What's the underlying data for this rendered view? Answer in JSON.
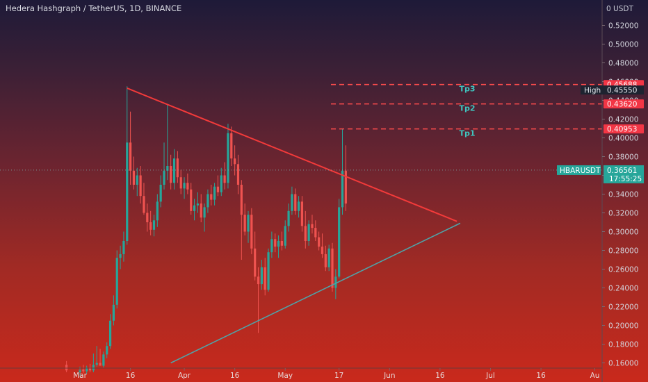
{
  "header": {
    "title": "Hedera Hashgraph / TetherUS, 1D, BINANCE"
  },
  "axis": {
    "currency": "USDT",
    "top_label": "0"
  },
  "colors": {
    "up": "#26a69a",
    "down": "#ef5350",
    "resistance_line": "#f23a3a",
    "support_line": "#4fa3a8",
    "target_line": "#ff4d4d",
    "label_bg_red": "#f23645",
    "label_bg_dark": "#1e2330",
    "label_bg_teal": "#26a69a"
  },
  "price_labels": {
    "tp3_price": "0.45688",
    "high_label": "High",
    "high_price": "0.45550",
    "tp2_price": "0.43620",
    "tp1_price": "0.40953",
    "symbol": "HBARUSDT",
    "last_price": "0.36561",
    "countdown": "17:55:25"
  },
  "chart_data": {
    "type": "candlestick",
    "title": "Hedera Hashgraph / TetherUS, 1D, BINANCE",
    "ylim": [
      0.16,
      0.53
    ],
    "y_ticks": [
      "0.52000",
      "0.50000",
      "0.48000",
      "0.46000",
      "0.44000",
      "0.42000",
      "0.40000",
      "0.38000",
      "0.36000",
      "0.34000",
      "0.32000",
      "0.30000",
      "0.28000",
      "0.26000",
      "0.24000",
      "0.22000",
      "0.20000",
      "0.18000",
      "0.16000"
    ],
    "x_ticks": [
      "Mar",
      "16",
      "Apr",
      "16",
      "May",
      "17",
      "Jun",
      "16",
      "Jul",
      "16",
      "Au"
    ],
    "grid": false,
    "targets": [
      {
        "label": "Tp3",
        "price": 0.45688
      },
      {
        "label": "Tp2",
        "price": 0.4362
      },
      {
        "label": "Tp1",
        "price": 0.40953
      }
    ],
    "high": 0.4555,
    "last": 0.36561,
    "trendlines": [
      {
        "name": "resistance",
        "from": {
          "date": "2021-03-15",
          "price": 0.453
        },
        "to": {
          "date": "2021-06-21",
          "price": 0.311
        }
      },
      {
        "name": "support",
        "from": {
          "date": "2021-03-28",
          "price": 0.16
        },
        "to": {
          "date": "2021-06-22",
          "price": 0.309
        }
      }
    ],
    "candles": [
      {
        "date": "2021-02-25",
        "o": 0.158,
        "h": 0.162,
        "l": 0.15,
        "c": 0.152
      },
      {
        "date": "2021-03-01",
        "o": 0.15,
        "h": 0.156,
        "l": 0.146,
        "c": 0.153
      },
      {
        "date": "2021-03-02",
        "o": 0.153,
        "h": 0.158,
        "l": 0.149,
        "c": 0.151
      },
      {
        "date": "2021-03-03",
        "o": 0.151,
        "h": 0.157,
        "l": 0.148,
        "c": 0.155
      },
      {
        "date": "2021-03-04",
        "o": 0.155,
        "h": 0.159,
        "l": 0.15,
        "c": 0.152
      },
      {
        "date": "2021-03-05",
        "o": 0.152,
        "h": 0.17,
        "l": 0.15,
        "c": 0.158
      },
      {
        "date": "2021-03-06",
        "o": 0.158,
        "h": 0.178,
        "l": 0.156,
        "c": 0.16
      },
      {
        "date": "2021-03-07",
        "o": 0.16,
        "h": 0.175,
        "l": 0.157,
        "c": 0.157
      },
      {
        "date": "2021-03-08",
        "o": 0.157,
        "h": 0.172,
        "l": 0.155,
        "c": 0.169
      },
      {
        "date": "2021-03-09",
        "o": 0.169,
        "h": 0.182,
        "l": 0.165,
        "c": 0.178
      },
      {
        "date": "2021-03-10",
        "o": 0.178,
        "h": 0.212,
        "l": 0.175,
        "c": 0.205
      },
      {
        "date": "2021-03-11",
        "o": 0.205,
        "h": 0.232,
        "l": 0.2,
        "c": 0.222
      },
      {
        "date": "2021-03-12",
        "o": 0.222,
        "h": 0.28,
        "l": 0.218,
        "c": 0.272
      },
      {
        "date": "2021-03-13",
        "o": 0.272,
        "h": 0.285,
        "l": 0.26,
        "c": 0.276
      },
      {
        "date": "2021-03-14",
        "o": 0.276,
        "h": 0.3,
        "l": 0.268,
        "c": 0.29
      },
      {
        "date": "2021-03-15",
        "o": 0.29,
        "h": 0.455,
        "l": 0.286,
        "c": 0.395
      },
      {
        "date": "2021-03-16",
        "o": 0.395,
        "h": 0.428,
        "l": 0.35,
        "c": 0.365
      },
      {
        "date": "2021-03-17",
        "o": 0.365,
        "h": 0.38,
        "l": 0.345,
        "c": 0.35
      },
      {
        "date": "2021-03-18",
        "o": 0.35,
        "h": 0.368,
        "l": 0.338,
        "c": 0.36
      },
      {
        "date": "2021-03-19",
        "o": 0.36,
        "h": 0.37,
        "l": 0.33,
        "c": 0.338
      },
      {
        "date": "2021-03-20",
        "o": 0.338,
        "h": 0.352,
        "l": 0.318,
        "c": 0.32
      },
      {
        "date": "2021-03-21",
        "o": 0.32,
        "h": 0.33,
        "l": 0.3,
        "c": 0.31
      },
      {
        "date": "2021-03-22",
        "o": 0.31,
        "h": 0.322,
        "l": 0.296,
        "c": 0.302
      },
      {
        "date": "2021-03-23",
        "o": 0.302,
        "h": 0.318,
        "l": 0.295,
        "c": 0.312
      },
      {
        "date": "2021-03-24",
        "o": 0.312,
        "h": 0.34,
        "l": 0.305,
        "c": 0.332
      },
      {
        "date": "2021-03-25",
        "o": 0.332,
        "h": 0.36,
        "l": 0.326,
        "c": 0.35
      },
      {
        "date": "2021-03-26",
        "o": 0.35,
        "h": 0.395,
        "l": 0.345,
        "c": 0.365
      },
      {
        "date": "2021-03-27",
        "o": 0.365,
        "h": 0.436,
        "l": 0.355,
        "c": 0.37
      },
      {
        "date": "2021-03-28",
        "o": 0.37,
        "h": 0.382,
        "l": 0.345,
        "c": 0.352
      },
      {
        "date": "2021-03-29",
        "o": 0.352,
        "h": 0.388,
        "l": 0.345,
        "c": 0.378
      },
      {
        "date": "2021-03-30",
        "o": 0.378,
        "h": 0.386,
        "l": 0.352,
        "c": 0.358
      },
      {
        "date": "2021-03-31",
        "o": 0.358,
        "h": 0.366,
        "l": 0.34,
        "c": 0.346
      },
      {
        "date": "2021-04-01",
        "o": 0.346,
        "h": 0.358,
        "l": 0.335,
        "c": 0.352
      },
      {
        "date": "2021-04-02",
        "o": 0.352,
        "h": 0.362,
        "l": 0.34,
        "c": 0.345
      },
      {
        "date": "2021-04-03",
        "o": 0.345,
        "h": 0.352,
        "l": 0.318,
        "c": 0.322
      },
      {
        "date": "2021-04-04",
        "o": 0.322,
        "h": 0.335,
        "l": 0.312,
        "c": 0.328
      },
      {
        "date": "2021-04-05",
        "o": 0.328,
        "h": 0.342,
        "l": 0.32,
        "c": 0.33
      },
      {
        "date": "2021-04-06",
        "o": 0.33,
        "h": 0.34,
        "l": 0.31,
        "c": 0.315
      },
      {
        "date": "2021-04-07",
        "o": 0.315,
        "h": 0.33,
        "l": 0.3,
        "c": 0.326
      },
      {
        "date": "2021-04-08",
        "o": 0.326,
        "h": 0.345,
        "l": 0.32,
        "c": 0.34
      },
      {
        "date": "2021-04-09",
        "o": 0.34,
        "h": 0.35,
        "l": 0.328,
        "c": 0.334
      },
      {
        "date": "2021-04-10",
        "o": 0.334,
        "h": 0.352,
        "l": 0.328,
        "c": 0.348
      },
      {
        "date": "2021-04-11",
        "o": 0.348,
        "h": 0.36,
        "l": 0.338,
        "c": 0.342
      },
      {
        "date": "2021-04-12",
        "o": 0.342,
        "h": 0.368,
        "l": 0.338,
        "c": 0.36
      },
      {
        "date": "2021-04-13",
        "o": 0.36,
        "h": 0.374,
        "l": 0.345,
        "c": 0.352
      },
      {
        "date": "2021-04-14",
        "o": 0.352,
        "h": 0.415,
        "l": 0.346,
        "c": 0.405
      },
      {
        "date": "2021-04-15",
        "o": 0.405,
        "h": 0.412,
        "l": 0.37,
        "c": 0.378
      },
      {
        "date": "2021-04-16",
        "o": 0.378,
        "h": 0.392,
        "l": 0.36,
        "c": 0.372
      },
      {
        "date": "2021-04-17",
        "o": 0.372,
        "h": 0.382,
        "l": 0.34,
        "c": 0.35
      },
      {
        "date": "2021-04-18",
        "o": 0.35,
        "h": 0.355,
        "l": 0.27,
        "c": 0.318
      },
      {
        "date": "2021-04-19",
        "o": 0.318,
        "h": 0.33,
        "l": 0.296,
        "c": 0.3
      },
      {
        "date": "2021-04-20",
        "o": 0.3,
        "h": 0.322,
        "l": 0.288,
        "c": 0.318
      },
      {
        "date": "2021-04-21",
        "o": 0.318,
        "h": 0.325,
        "l": 0.276,
        "c": 0.282
      },
      {
        "date": "2021-04-22",
        "o": 0.282,
        "h": 0.3,
        "l": 0.248,
        "c": 0.252
      },
      {
        "date": "2021-04-23",
        "o": 0.252,
        "h": 0.262,
        "l": 0.192,
        "c": 0.244
      },
      {
        "date": "2021-04-24",
        "o": 0.244,
        "h": 0.27,
        "l": 0.238,
        "c": 0.262
      },
      {
        "date": "2021-04-25",
        "o": 0.262,
        "h": 0.272,
        "l": 0.232,
        "c": 0.238
      },
      {
        "date": "2021-04-26",
        "o": 0.238,
        "h": 0.282,
        "l": 0.236,
        "c": 0.278
      },
      {
        "date": "2021-04-27",
        "o": 0.278,
        "h": 0.3,
        "l": 0.272,
        "c": 0.292
      },
      {
        "date": "2021-04-28",
        "o": 0.292,
        "h": 0.298,
        "l": 0.278,
        "c": 0.284
      },
      {
        "date": "2021-04-29",
        "o": 0.284,
        "h": 0.296,
        "l": 0.272,
        "c": 0.29
      },
      {
        "date": "2021-04-30",
        "o": 0.29,
        "h": 0.3,
        "l": 0.28,
        "c": 0.285
      },
      {
        "date": "2021-05-01",
        "o": 0.285,
        "h": 0.312,
        "l": 0.282,
        "c": 0.306
      },
      {
        "date": "2021-05-02",
        "o": 0.306,
        "h": 0.33,
        "l": 0.3,
        "c": 0.322
      },
      {
        "date": "2021-05-03",
        "o": 0.322,
        "h": 0.348,
        "l": 0.318,
        "c": 0.34
      },
      {
        "date": "2021-05-04",
        "o": 0.34,
        "h": 0.346,
        "l": 0.318,
        "c": 0.322
      },
      {
        "date": "2021-05-05",
        "o": 0.322,
        "h": 0.338,
        "l": 0.315,
        "c": 0.332
      },
      {
        "date": "2021-05-06",
        "o": 0.332,
        "h": 0.338,
        "l": 0.3,
        "c": 0.306
      },
      {
        "date": "2021-05-07",
        "o": 0.306,
        "h": 0.322,
        "l": 0.282,
        "c": 0.29
      },
      {
        "date": "2021-05-08",
        "o": 0.29,
        "h": 0.312,
        "l": 0.285,
        "c": 0.308
      },
      {
        "date": "2021-05-09",
        "o": 0.308,
        "h": 0.318,
        "l": 0.298,
        "c": 0.304
      },
      {
        "date": "2021-05-10",
        "o": 0.304,
        "h": 0.312,
        "l": 0.29,
        "c": 0.294
      },
      {
        "date": "2021-05-11",
        "o": 0.294,
        "h": 0.3,
        "l": 0.28,
        "c": 0.284
      },
      {
        "date": "2021-05-12",
        "o": 0.284,
        "h": 0.298,
        "l": 0.272,
        "c": 0.276
      },
      {
        "date": "2021-05-13",
        "o": 0.276,
        "h": 0.285,
        "l": 0.258,
        "c": 0.262
      },
      {
        "date": "2021-05-14",
        "o": 0.262,
        "h": 0.286,
        "l": 0.258,
        "c": 0.282
      },
      {
        "date": "2021-05-15",
        "o": 0.282,
        "h": 0.288,
        "l": 0.236,
        "c": 0.24
      },
      {
        "date": "2021-05-16",
        "o": 0.24,
        "h": 0.26,
        "l": 0.228,
        "c": 0.252
      },
      {
        "date": "2021-05-17",
        "o": 0.252,
        "h": 0.335,
        "l": 0.25,
        "c": 0.326
      },
      {
        "date": "2021-05-18",
        "o": 0.326,
        "h": 0.41,
        "l": 0.318,
        "c": 0.365
      },
      {
        "date": "2021-05-19",
        "o": 0.365,
        "h": 0.392,
        "l": 0.322,
        "c": 0.33
      }
    ]
  }
}
